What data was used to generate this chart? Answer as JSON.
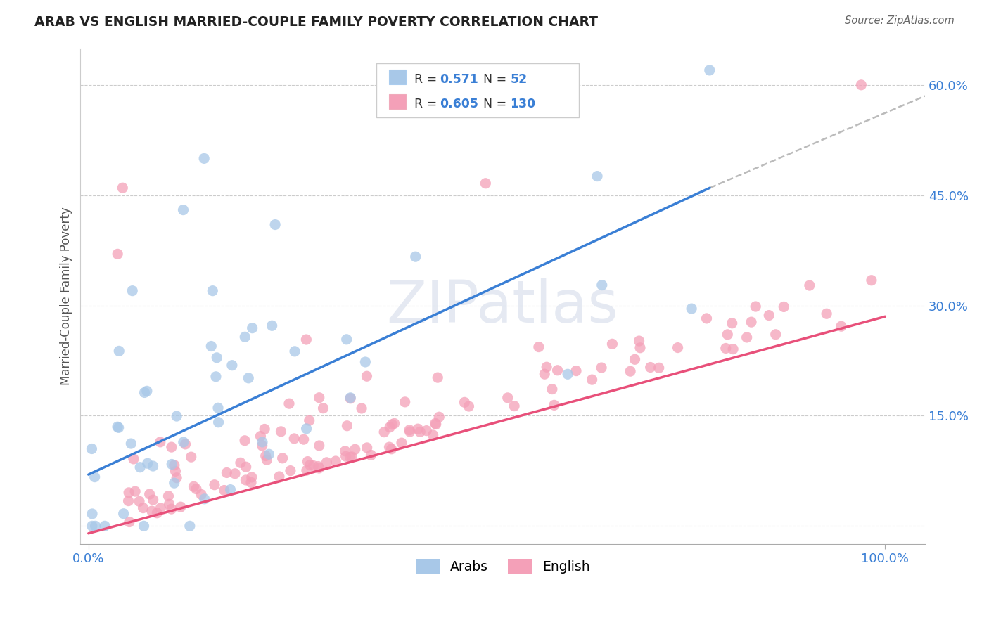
{
  "title": "ARAB VS ENGLISH MARRIED-COUPLE FAMILY POVERTY CORRELATION CHART",
  "source": "Source: ZipAtlas.com",
  "ylabel": "Married-Couple Family Poverty",
  "watermark": "ZIPatlas",
  "arab_color": "#a8c8e8",
  "english_color": "#f4a0b8",
  "arab_line_color": "#3a7fd5",
  "english_line_color": "#e8507a",
  "ytick_color": "#3a7fd5",
  "xtick_color": "#3a7fd5",
  "arab_R": 0.571,
  "arab_N": 52,
  "english_R": 0.605,
  "english_N": 130,
  "arab_line_x0": 0.0,
  "arab_line_y0": 0.07,
  "arab_line_x1": 0.78,
  "arab_line_y1": 0.46,
  "english_line_x0": 0.0,
  "english_line_y0": -0.01,
  "english_line_x1": 1.0,
  "english_line_y1": 0.285,
  "dash_line_x0": 0.78,
  "dash_line_y0": 0.46,
  "dash_line_x1": 1.05,
  "dash_line_y1": 0.585,
  "xlim": [
    -0.01,
    1.05
  ],
  "ylim": [
    -0.025,
    0.65
  ],
  "yticks": [
    0.0,
    0.15,
    0.3,
    0.45,
    0.6
  ],
  "yticklabels": [
    "",
    "15.0%",
    "30.0%",
    "45.0%",
    "60.0%"
  ],
  "xticks": [
    0.0,
    1.0
  ],
  "xticklabels": [
    "0.0%",
    "100.0%"
  ]
}
